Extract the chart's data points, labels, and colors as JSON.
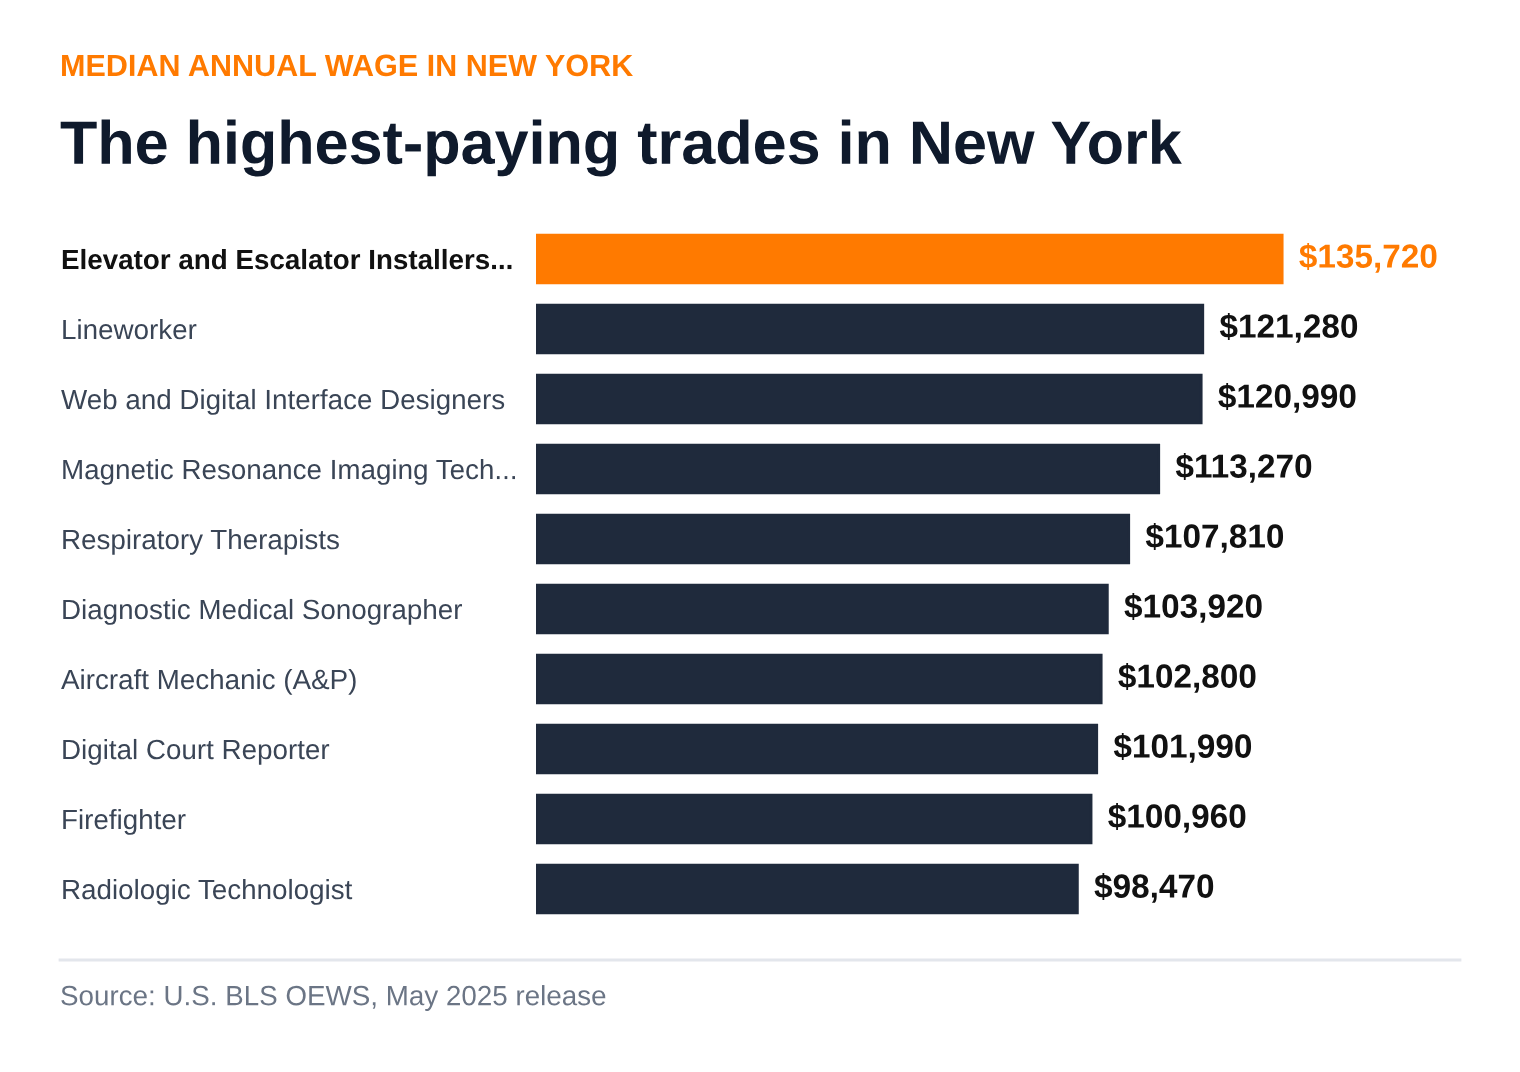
{
  "chart_data": {
    "type": "bar",
    "orientation": "horizontal",
    "subtitle": "MEDIAN ANNUAL WAGE IN NEW YORK",
    "title": "The highest-paying trades in New York",
    "categories": [
      "Elevator and Escalator Installers...",
      "Lineworker",
      "Web and Digital Interface Designers",
      "Magnetic Resonance Imaging Tech...",
      "Respiratory Therapists",
      "Diagnostic Medical Sonographer",
      "Aircraft Mechanic (A&P)",
      "Digital Court Reporter",
      "Firefighter",
      "Radiologic Technologist"
    ],
    "values": [
      135720,
      121280,
      120990,
      113270,
      107810,
      103920,
      102800,
      101990,
      100960,
      98470
    ],
    "colors": [
      "#ff7a00",
      "#1f2a3c",
      "#1f2a3c",
      "#1f2a3c",
      "#1f2a3c",
      "#1f2a3c",
      "#1f2a3c",
      "#1f2a3c",
      "#1f2a3c",
      "#1f2a3c"
    ],
    "value_labels": [
      "$135,720",
      "$121,280",
      "$120,990",
      "$113,270",
      "$107,810",
      "$103,920",
      "$102,800",
      "$101,990",
      "$100,960",
      "$98,470"
    ],
    "annotations": [
      "Source: U.S. BLS OEWS, May 2025 release"
    ],
    "grid": false,
    "legend": false
  }
}
